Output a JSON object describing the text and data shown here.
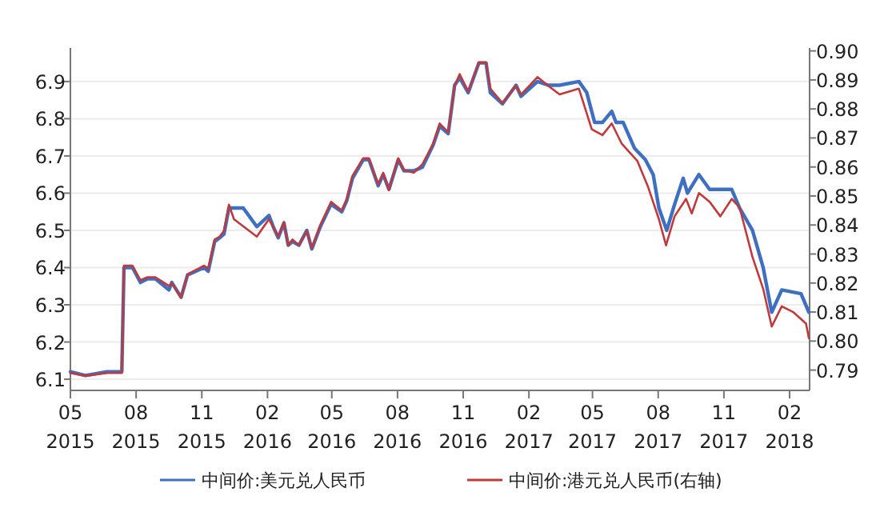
{
  "chart_data": {
    "type": "line",
    "xlim": [
      "2015-05-01",
      "2018-03-01"
    ],
    "xticks": [
      {
        "value": "2015-05-01",
        "label": "05\n2015"
      },
      {
        "value": "2015-08-01",
        "label": "08\n2015"
      },
      {
        "value": "2015-11-01",
        "label": "11\n2015"
      },
      {
        "value": "2016-02-01",
        "label": "02\n2016"
      },
      {
        "value": "2016-05-01",
        "label": "05\n2016"
      },
      {
        "value": "2016-08-01",
        "label": "08\n2016"
      },
      {
        "value": "2016-11-01",
        "label": "11\n2016"
      },
      {
        "value": "2017-02-01",
        "label": "02\n2017"
      },
      {
        "value": "2017-05-01",
        "label": "05\n2017"
      },
      {
        "value": "2017-08-01",
        "label": "08\n2017"
      },
      {
        "value": "2017-11-01",
        "label": "11\n2017"
      },
      {
        "value": "2018-02-01",
        "label": "02\n2018"
      }
    ],
    "ylim": [
      6.07,
      6.99
    ],
    "yticks": [
      6.1,
      6.2,
      6.3,
      6.4,
      6.5,
      6.6,
      6.7,
      6.8,
      6.9
    ],
    "y2lim": [
      0.783,
      0.901
    ],
    "y2ticks": [
      0.79,
      {
        "value": 0.8,
        "label": "0.80"
      },
      0.81,
      0.82,
      0.83,
      0.84,
      0.85,
      0.86,
      0.87,
      0.88,
      0.89,
      {
        "value": 0.9,
        "label": "0.90"
      }
    ],
    "grid": "y",
    "legend": "bottom",
    "series": [
      {
        "name": "中间价:美元兑人民币",
        "color": "#3f6fc0",
        "x": [
          "2015-05-01",
          "2015-05-22",
          "2015-06-21",
          "2015-07-12",
          "2015-07-15",
          "2015-07-27",
          "2015-08-07",
          "2015-08-17",
          "2015-08-28",
          "2015-09-16",
          "2015-09-20",
          "2015-10-03",
          "2015-10-12",
          "2015-11-04",
          "2015-11-10",
          "2015-11-19",
          "2015-11-26",
          "2015-12-02",
          "2015-12-09",
          "2015-12-29",
          "2016-01-17",
          "2016-02-03",
          "2016-02-09",
          "2016-02-16",
          "2016-02-24",
          "2016-03-01",
          "2016-03-07",
          "2016-03-16",
          "2016-03-27",
          "2016-04-03",
          "2016-04-15",
          "2016-04-30",
          "2016-05-15",
          "2016-05-22",
          "2016-05-30",
          "2016-06-14",
          "2016-06-22",
          "2016-07-05",
          "2016-07-12",
          "2016-07-20",
          "2016-08-02",
          "2016-08-10",
          "2016-08-24",
          "2016-09-05",
          "2016-09-20",
          "2016-09-29",
          "2016-10-11",
          "2016-10-20",
          "2016-10-27",
          "2016-11-08",
          "2016-11-23",
          "2016-12-03",
          "2016-12-09",
          "2016-12-26",
          "2017-01-14",
          "2017-01-21",
          "2017-02-13",
          "2017-02-28",
          "2017-03-16",
          "2017-04-12",
          "2017-04-23",
          "2017-05-04",
          "2017-05-15",
          "2017-05-28",
          "2017-06-03",
          "2017-06-13",
          "2017-06-29",
          "2017-07-14",
          "2017-07-25",
          "2017-08-02",
          "2017-08-13",
          "2017-08-24",
          "2017-09-05",
          "2017-09-11",
          "2017-09-27",
          "2017-10-12",
          "2017-10-27",
          "2017-11-12",
          "2017-11-23",
          "2017-12-11",
          "2017-12-26",
          "2018-01-07",
          "2018-01-21",
          "2018-02-17",
          "2018-02-28"
        ],
        "values": [
          6.12,
          6.11,
          6.12,
          6.12,
          6.4,
          6.4,
          6.36,
          6.37,
          6.37,
          6.34,
          6.36,
          6.32,
          6.38,
          6.4,
          6.39,
          6.47,
          6.48,
          6.49,
          6.56,
          6.56,
          6.51,
          6.54,
          6.51,
          6.48,
          6.52,
          6.46,
          6.47,
          6.46,
          6.5,
          6.45,
          6.51,
          6.57,
          6.55,
          6.58,
          6.64,
          6.69,
          6.69,
          6.62,
          6.65,
          6.61,
          6.69,
          6.66,
          6.66,
          6.67,
          6.73,
          6.78,
          6.76,
          6.89,
          6.91,
          6.87,
          6.95,
          6.95,
          6.87,
          6.84,
          6.89,
          6.86,
          6.9,
          6.89,
          6.89,
          6.9,
          6.87,
          6.79,
          6.79,
          6.82,
          6.79,
          6.79,
          6.72,
          6.69,
          6.65,
          6.56,
          6.5,
          6.57,
          6.64,
          6.6,
          6.65,
          6.61,
          6.61,
          6.61,
          6.56,
          6.5,
          6.4,
          6.28,
          6.34,
          6.33,
          6.28
        ]
      },
      {
        "name": "中间价:港元兑人民币(右轴)",
        "color": "#c0393b",
        "axis": "y2",
        "x": [
          "2015-05-01",
          "2015-05-22",
          "2015-06-21",
          "2015-07-12",
          "2015-07-15",
          "2015-07-27",
          "2015-08-07",
          "2015-08-17",
          "2015-08-28",
          "2015-09-16",
          "2015-09-20",
          "2015-10-03",
          "2015-10-12",
          "2015-11-04",
          "2015-11-10",
          "2015-11-19",
          "2015-11-26",
          "2015-12-02",
          "2015-12-09",
          "2015-12-16",
          "2016-01-17",
          "2016-02-03",
          "2016-02-16",
          "2016-02-24",
          "2016-03-01",
          "2016-03-07",
          "2016-03-16",
          "2016-03-27",
          "2016-04-03",
          "2016-04-15",
          "2016-04-30",
          "2016-05-15",
          "2016-05-22",
          "2016-05-30",
          "2016-06-14",
          "2016-06-22",
          "2016-07-05",
          "2016-07-12",
          "2016-07-20",
          "2016-08-02",
          "2016-08-10",
          "2016-08-24",
          "2016-09-05",
          "2016-09-20",
          "2016-09-29",
          "2016-10-11",
          "2016-10-20",
          "2016-10-27",
          "2016-11-08",
          "2016-11-23",
          "2016-12-03",
          "2016-12-09",
          "2016-12-26",
          "2017-01-14",
          "2017-01-21",
          "2017-02-13",
          "2017-02-28",
          "2017-03-16",
          "2017-04-12",
          "2017-04-30",
          "2017-05-15",
          "2017-05-28",
          "2017-06-11",
          "2017-07-03",
          "2017-07-18",
          "2017-08-02",
          "2017-08-12",
          "2017-08-24",
          "2017-09-09",
          "2017-09-17",
          "2017-09-27",
          "2017-10-12",
          "2017-10-27",
          "2017-11-12",
          "2017-11-23",
          "2017-12-11",
          "2017-12-26",
          "2018-01-07",
          "2018-01-21",
          "2018-02-06",
          "2018-02-24",
          "2018-02-28"
        ],
        "values": [
          0.789,
          0.788,
          0.789,
          0.789,
          0.826,
          0.826,
          0.821,
          0.822,
          0.822,
          0.819,
          0.82,
          0.815,
          0.823,
          0.826,
          0.825,
          0.835,
          0.836,
          0.838,
          0.847,
          0.842,
          0.836,
          0.842,
          0.836,
          0.841,
          0.833,
          0.835,
          0.833,
          0.838,
          0.832,
          0.84,
          0.848,
          0.845,
          0.849,
          0.857,
          0.863,
          0.863,
          0.854,
          0.858,
          0.852,
          0.863,
          0.859,
          0.858,
          0.861,
          0.868,
          0.875,
          0.872,
          0.888,
          0.892,
          0.886,
          0.896,
          0.896,
          0.887,
          0.882,
          0.888,
          0.885,
          0.891,
          0.888,
          0.885,
          0.887,
          0.873,
          0.871,
          0.875,
          0.868,
          0.862,
          0.853,
          0.842,
          0.833,
          0.843,
          0.849,
          0.844,
          0.851,
          0.848,
          0.843,
          0.849,
          0.846,
          0.829,
          0.818,
          0.805,
          0.812,
          0.81,
          0.806,
          0.801
        ]
      }
    ]
  }
}
